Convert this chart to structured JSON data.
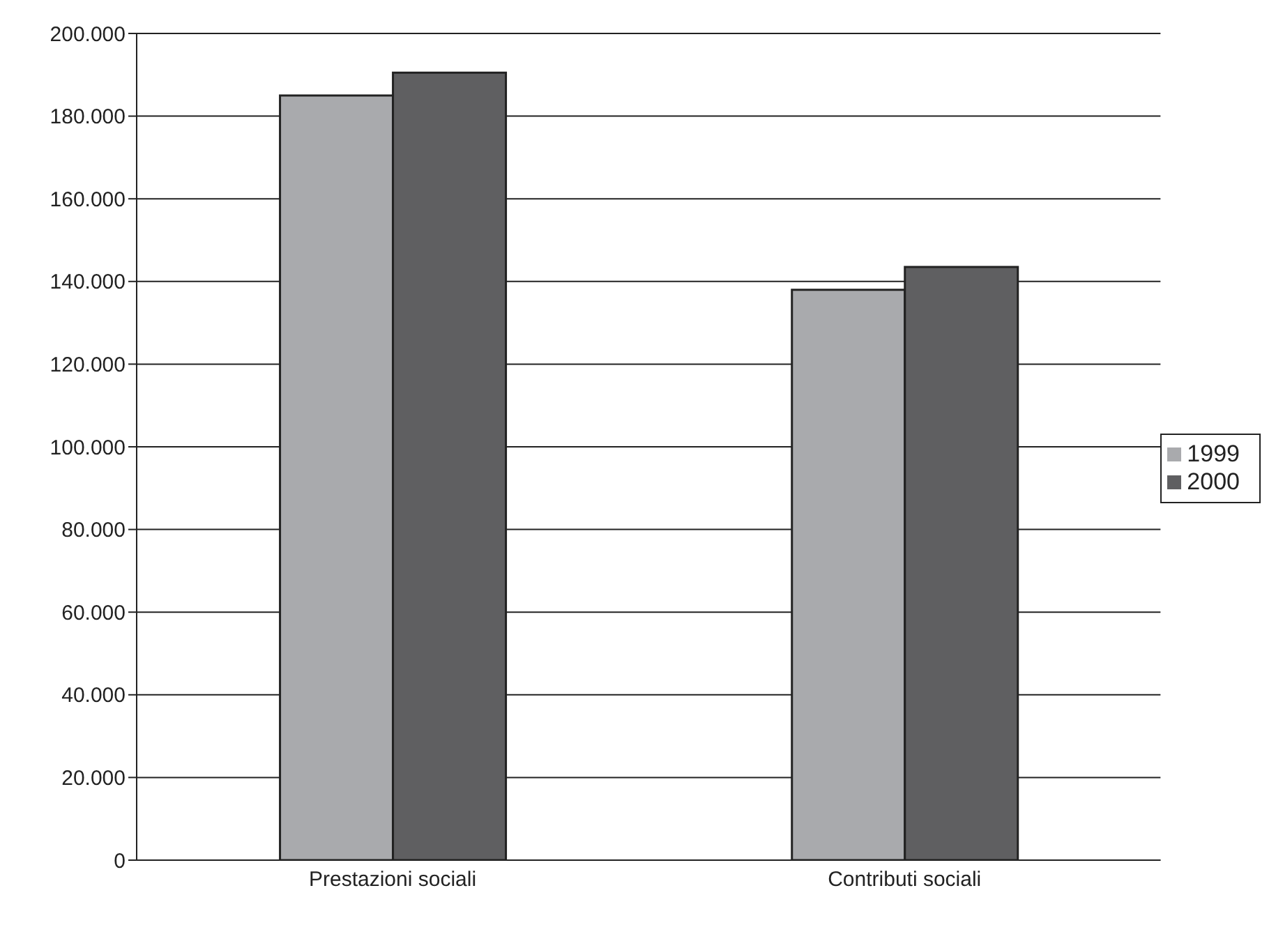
{
  "chart_data": {
    "type": "bar",
    "categories": [
      "Prestazioni sociali",
      "Contributi sociali"
    ],
    "series": [
      {
        "name": "1999",
        "color": "#a9aaad",
        "values": [
          185000,
          138000
        ]
      },
      {
        "name": "2000",
        "color": "#5f5f61",
        "values": [
          190500,
          143500
        ]
      }
    ],
    "ylim": [
      0,
      200000
    ],
    "yticks": [
      {
        "value": 0,
        "label": "0"
      },
      {
        "value": 20000,
        "label": "20.000"
      },
      {
        "value": 40000,
        "label": "40.000"
      },
      {
        "value": 60000,
        "label": "60.000"
      },
      {
        "value": 80000,
        "label": "80.000"
      },
      {
        "value": 100000,
        "label": "100.000"
      },
      {
        "value": 120000,
        "label": "120.000"
      },
      {
        "value": 140000,
        "label": "140.000"
      },
      {
        "value": 160000,
        "label": "160.000"
      },
      {
        "value": 180000,
        "label": "180.000"
      },
      {
        "value": 200000,
        "label": "200.000"
      }
    ],
    "grid": "y",
    "legend": "right"
  }
}
